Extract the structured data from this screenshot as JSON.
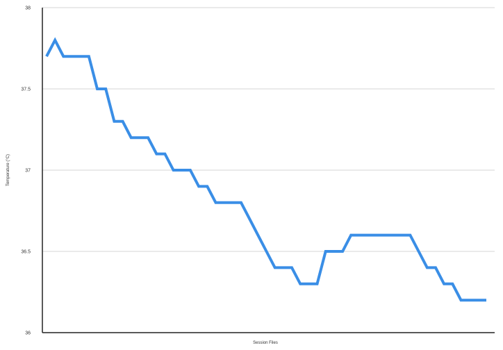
{
  "chart_data": {
    "type": "line",
    "xlabel": "Session Files",
    "ylabel": "Temperature (°C)",
    "ylim": [
      36,
      38
    ],
    "yticks": [
      "38",
      "37.5",
      "37",
      "36.5",
      "36"
    ],
    "grid": true,
    "series": [
      {
        "color": "#3a8ee6",
        "values": [
          37.7,
          37.8,
          37.7,
          37.7,
          37.7,
          37.7,
          37.5,
          37.5,
          37.3,
          37.3,
          37.2,
          37.2,
          37.2,
          37.1,
          37.1,
          37.0,
          37.0,
          37.0,
          36.9,
          36.9,
          36.8,
          36.8,
          36.8,
          36.8,
          36.7,
          36.6,
          36.5,
          36.4,
          36.4,
          36.4,
          36.3,
          36.3,
          36.3,
          36.5,
          36.5,
          36.5,
          36.6,
          36.6,
          36.6,
          36.6,
          36.6,
          36.6,
          36.6,
          36.6,
          36.5,
          36.4,
          36.4,
          36.3,
          36.3,
          36.2,
          36.2,
          36.2,
          36.2
        ]
      }
    ]
  }
}
